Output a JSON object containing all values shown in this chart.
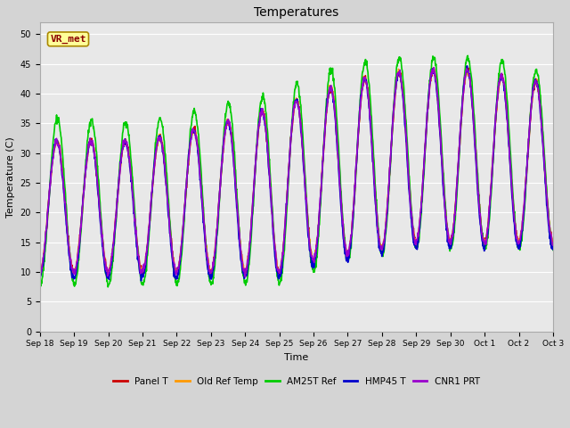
{
  "title": "Temperatures",
  "xlabel": "Time",
  "ylabel": "Temperature (C)",
  "ylim": [
    0,
    52
  ],
  "yticks": [
    0,
    5,
    10,
    15,
    20,
    25,
    30,
    35,
    40,
    45,
    50
  ],
  "series": [
    "Panel T",
    "Old Ref Temp",
    "AM25T Ref",
    "HMP45 T",
    "CNR1 PRT"
  ],
  "colors": [
    "#cc0000",
    "#ff9900",
    "#00cc00",
    "#0000cc",
    "#9900cc"
  ],
  "annotation_text": "VR_met",
  "x_tick_labels": [
    "Sep 18",
    "Sep 19",
    "Sep 20",
    "Sep 21",
    "Sep 22",
    "Sep 23",
    "Sep 24",
    "Sep 25",
    "Sep 26",
    "Sep 27",
    "Sep 28",
    "Sep 29",
    "Sep 30",
    "Oct 1",
    "Oct 2",
    "Oct 3"
  ],
  "linewidth": 1.2,
  "fig_width": 6.4,
  "fig_height": 4.8,
  "dpi": 100
}
